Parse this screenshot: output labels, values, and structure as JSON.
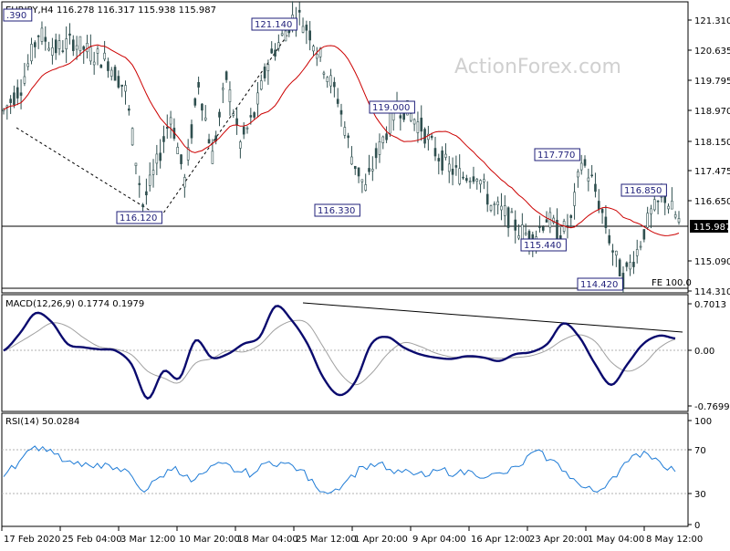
{
  "header": {
    "symbol": "EURJPY,H4",
    "ohlc": "116.278 116.317 115.938 115.987"
  },
  "watermark": "ActionForex.com",
  "colors": {
    "candle": "#2f4f4f",
    "ma": "#cc0000",
    "macd": "#0a0a6e",
    "signal": "#a0a0a0",
    "rsi": "#1e7bd6",
    "trend": "#000000",
    "label_border": "#1f1f7a"
  },
  "price_pane": {
    "y_ticks": [
      "121.310",
      "120.635",
      "119.795",
      "118.970",
      "118.150",
      "117.475",
      "116.650",
      "115.987",
      "115.090",
      "114.310"
    ],
    "current_price": "115.987",
    "fe_label": "FE 100.0",
    "annotations": [
      {
        "name": "label-top-left",
        "text": ".390"
      },
      {
        "name": "label-121140",
        "text": "121.140"
      },
      {
        "name": "label-116120",
        "text": "116.120"
      },
      {
        "name": "label-119000",
        "text": "119.000"
      },
      {
        "name": "label-116330",
        "text": "116.330"
      },
      {
        "name": "label-117770",
        "text": "117.770"
      },
      {
        "name": "label-115440",
        "text": "115.440"
      },
      {
        "name": "label-116850",
        "text": "116.850"
      },
      {
        "name": "label-114420",
        "text": "114.420"
      }
    ]
  },
  "macd_pane": {
    "label": "MACD(12,26,9) 0.1774 0.1979",
    "y_ticks": [
      "0.7013",
      "0.00",
      "-0.7699"
    ]
  },
  "rsi_pane": {
    "label": "RSI(14) 50.0284",
    "y_ticks": [
      "100",
      "70",
      "30",
      "0"
    ]
  },
  "x_ticks": [
    "17 Feb 2020",
    "25 Feb 04:00",
    "3 Mar 12:00",
    "10 Mar 20:00",
    "18 Mar 04:00",
    "25 Mar 12:00",
    "1 Apr 20:00",
    "9 Apr 04:00",
    "16 Apr 12:00",
    "23 Apr 20:00",
    "1 May 04:00",
    "8 May 12:00"
  ],
  "chart_data": [
    {
      "type": "candlestick",
      "title": "EURJPY,H4",
      "ylim": [
        114.31,
        121.31
      ],
      "price_path": [
        [
          0,
          118.7
        ],
        [
          5,
          119.3
        ],
        [
          10,
          120.6
        ],
        [
          15,
          120.2
        ],
        [
          20,
          120.4
        ],
        [
          25,
          120.1
        ],
        [
          30,
          119.9
        ],
        [
          35,
          119.2
        ],
        [
          40,
          116.4
        ],
        [
          44,
          117.4
        ],
        [
          48,
          118.6
        ],
        [
          52,
          117.0
        ],
        [
          56,
          119.4
        ],
        [
          60,
          117.6
        ],
        [
          64,
          119.5
        ],
        [
          68,
          117.9
        ],
        [
          72,
          118.6
        ],
        [
          76,
          119.9
        ],
        [
          80,
          120.5
        ],
        [
          84,
          121.1
        ],
        [
          88,
          120.6
        ],
        [
          92,
          119.8
        ],
        [
          96,
          119.0
        ],
        [
          100,
          117.6
        ],
        [
          104,
          116.8
        ],
        [
          107,
          117.6
        ],
        [
          110,
          118.2
        ],
        [
          113,
          118.8
        ],
        [
          116,
          118.7
        ],
        [
          120,
          118.3
        ],
        [
          124,
          117.7
        ],
        [
          128,
          117.3
        ],
        [
          132,
          117.1
        ],
        [
          136,
          117.2
        ],
        [
          140,
          116.4
        ],
        [
          144,
          116.2
        ],
        [
          148,
          115.8
        ],
        [
          152,
          115.6
        ],
        [
          156,
          116.1
        ],
        [
          160,
          115.7
        ],
        [
          163,
          116.0
        ],
        [
          166,
          117.5
        ],
        [
          169,
          117.0
        ],
        [
          172,
          116.2
        ],
        [
          175,
          115.3
        ],
        [
          178,
          114.6
        ],
        [
          182,
          115.3
        ],
        [
          186,
          116.2
        ],
        [
          190,
          116.6
        ],
        [
          194,
          116.0
        ]
      ]
    },
    {
      "type": "line",
      "name": "MACD",
      "ylim": [
        -0.7699,
        0.7013
      ],
      "values": [
        0.0,
        0.25,
        0.55,
        0.42,
        0.1,
        0.05,
        0.02,
        0.0,
        -0.2,
        -0.7,
        -0.3,
        -0.4,
        0.15,
        -0.1,
        -0.05,
        0.1,
        0.2,
        0.65,
        0.45,
        0.1,
        -0.4,
        -0.65,
        -0.45,
        0.1,
        0.2,
        0.05,
        -0.05,
        -0.1,
        -0.12,
        -0.08,
        -0.1,
        -0.15,
        -0.05,
        -0.02,
        0.1,
        0.4,
        0.2,
        -0.2,
        -0.5,
        -0.2,
        0.1,
        0.22,
        0.18
      ]
    },
    {
      "type": "line",
      "name": "RSI",
      "ylim": [
        0,
        100
      ],
      "values": [
        45,
        60,
        75,
        72,
        60,
        55,
        58,
        52,
        50,
        30,
        45,
        55,
        40,
        50,
        58,
        50,
        48,
        60,
        58,
        52,
        35,
        30,
        42,
        55,
        58,
        48,
        50,
        45,
        52,
        48,
        50,
        45,
        48,
        55,
        70,
        62,
        50,
        35,
        30,
        45,
        60,
        70,
        60,
        50
      ]
    }
  ]
}
